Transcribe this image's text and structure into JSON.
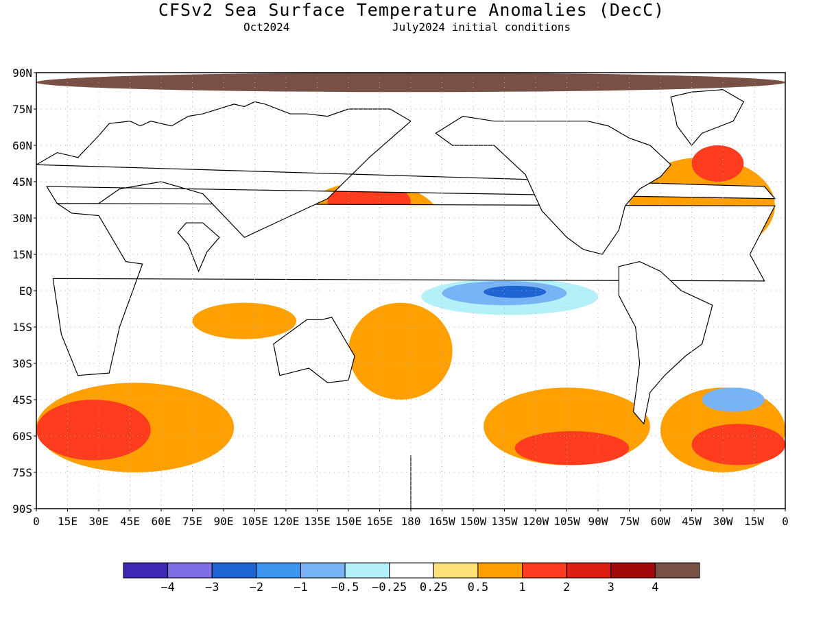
{
  "title": "CFSv2 Sea Surface Temperature Anomalies (DecC)",
  "subtitle_left": "Oct2024",
  "subtitle_right": "July2024 initial conditions",
  "map": {
    "projection": "equirectangular",
    "lon_range": [
      0,
      360
    ],
    "lat_range": [
      -90,
      90
    ],
    "grid": true,
    "lat_ticks": [
      "90N",
      "75N",
      "60N",
      "45N",
      "30N",
      "15N",
      "EQ",
      "15S",
      "30S",
      "45S",
      "60S",
      "75S",
      "90S"
    ],
    "lon_ticks": [
      "0",
      "15E",
      "30E",
      "45E",
      "60E",
      "75E",
      "90E",
      "105E",
      "120E",
      "135E",
      "150E",
      "165E",
      "180",
      "165W",
      "150W",
      "135W",
      "120W",
      "105W",
      "90W",
      "75W",
      "60W",
      "45W",
      "30W",
      "15W",
      "0"
    ]
  },
  "colorbar": {
    "colors": [
      "#3c28b4",
      "#7d6ee6",
      "#1e64d2",
      "#3c96f0",
      "#78b4f5",
      "#b4f0fa",
      "#ffffff",
      "#ffe178",
      "#ffa000",
      "#ff3c1e",
      "#dc1e14",
      "#a00a0a",
      "#785046"
    ],
    "labels": [
      "-4",
      "-3",
      "-2",
      "-1",
      "-0.5",
      "-0.25",
      "0.25",
      "0.5",
      "1",
      "2",
      "3",
      "4"
    ]
  },
  "colors": {
    "land_ice": "#785046",
    "coastline": "#000000",
    "grid": "#aaaaaa"
  },
  "regions": [
    {
      "name": "n-atl-warm",
      "color": "#ffa000",
      "lat": [
        15,
        55
      ],
      "lon": [
        285,
        355
      ]
    },
    {
      "name": "n-atl-hot",
      "color": "#ff3c1e",
      "lat": [
        45,
        60
      ],
      "lon": [
        315,
        340
      ]
    },
    {
      "name": "nw-pac-warm",
      "color": "#ffa000",
      "lat": [
        10,
        45
      ],
      "lon": [
        125,
        195
      ]
    },
    {
      "name": "nw-pac-hot",
      "color": "#ff3c1e",
      "lat": [
        28,
        45
      ],
      "lon": [
        140,
        180
      ]
    },
    {
      "name": "trop-indian-warm",
      "color": "#ffa000",
      "lat": [
        -20,
        -5
      ],
      "lon": [
        75,
        125
      ]
    },
    {
      "name": "sw-pac-warm",
      "color": "#ffa000",
      "lat": [
        -45,
        -5
      ],
      "lon": [
        150,
        200
      ]
    },
    {
      "name": "eq-pac-cool",
      "color": "#b4f0fa",
      "lat": [
        -10,
        5
      ],
      "lon": [
        185,
        270
      ]
    },
    {
      "name": "eq-pac-cooler",
      "color": "#78b4f5",
      "lat": [
        -6,
        4
      ],
      "lon": [
        195,
        255
      ]
    },
    {
      "name": "eq-pac-coolest",
      "color": "#1e64d2",
      "lat": [
        -3,
        2
      ],
      "lon": [
        215,
        245
      ]
    },
    {
      "name": "so-indian-warm",
      "color": "#ffa000",
      "lat": [
        -75,
        -38
      ],
      "lon": [
        0,
        95
      ]
    },
    {
      "name": "so-indian-hot",
      "color": "#ff3c1e",
      "lat": [
        -70,
        -45
      ],
      "lon": [
        0,
        55
      ]
    },
    {
      "name": "so-pac-warm",
      "color": "#ffa000",
      "lat": [
        -72,
        -40
      ],
      "lon": [
        215,
        295
      ]
    },
    {
      "name": "so-pac-hot",
      "color": "#ff3c1e",
      "lat": [
        -72,
        -58
      ],
      "lon": [
        230,
        285
      ]
    },
    {
      "name": "so-atl-warm",
      "color": "#ffa000",
      "lat": [
        -75,
        -40
      ],
      "lon": [
        300,
        360
      ]
    },
    {
      "name": "so-atl-hot",
      "color": "#ff3c1e",
      "lat": [
        -72,
        -55
      ],
      "lon": [
        315,
        360
      ]
    },
    {
      "name": "so-atl-cool",
      "color": "#78b4f5",
      "lat": [
        -50,
        -40
      ],
      "lon": [
        320,
        350
      ]
    },
    {
      "name": "arctic-ice",
      "color": "#785046",
      "lat": [
        82,
        90
      ],
      "lon": [
        0,
        360
      ]
    }
  ],
  "land": [
    {
      "name": "africa",
      "lon": [
        10,
        17,
        30,
        43,
        51,
        40,
        35,
        20,
        12,
        8,
        -10,
        -17,
        -5,
        10
      ],
      "lat": [
        36,
        32,
        31,
        12,
        11,
        -15,
        -34,
        -35,
        -18,
        5,
        4,
        15,
        35,
        36
      ]
    },
    {
      "name": "europe-asia",
      "lon": [
        10,
        30,
        40,
        60,
        80,
        100,
        120,
        140,
        160,
        180,
        170,
        150,
        140,
        130,
        122,
        110,
        105,
        100,
        95,
        80,
        73,
        65,
        55,
        50,
        45,
        35,
        30,
        20,
        10,
        0,
        -10,
        -5,
        5,
        10
      ],
      "lat": [
        36,
        36,
        42,
        45,
        40,
        22,
        30,
        38,
        55,
        70,
        75,
        75,
        72,
        73,
        73,
        77,
        78,
        76,
        77,
        73,
        72,
        68,
        70,
        68,
        70,
        69,
        64,
        55,
        57,
        52,
        43,
        38,
        43,
        36
      ]
    },
    {
      "name": "india",
      "lon": [
        68,
        73,
        78,
        82,
        88,
        80,
        72,
        68
      ],
      "lat": [
        24,
        19,
        8,
        16,
        22,
        28,
        28,
        24
      ]
    },
    {
      "name": "australia",
      "lon": [
        114,
        130,
        137,
        142,
        153,
        150,
        140,
        131,
        117,
        114
      ],
      "lat": [
        -22,
        -12,
        -12,
        -11,
        -27,
        -37,
        -38,
        -32,
        -35,
        -22
      ]
    },
    {
      "name": "north-america",
      "lon": [
        -168,
        -160,
        -140,
        -125,
        -117,
        -105,
        -97,
        -88,
        -80,
        -77,
        -70,
        -60,
        -55,
        -65,
        -75,
        -85,
        -95,
        -105,
        -125,
        -140,
        -155,
        -168
      ],
      "lat": [
        65,
        60,
        60,
        48,
        33,
        22,
        17,
        15,
        25,
        35,
        42,
        47,
        52,
        60,
        63,
        68,
        70,
        70,
        70,
        70,
        72,
        65
      ]
    },
    {
      "name": "south-america",
      "lon": [
        -80,
        -70,
        -60,
        -50,
        -35,
        -40,
        -48,
        -58,
        -65,
        -68,
        -73,
        -70,
        -72,
        -80
      ],
      "lat": [
        10,
        12,
        8,
        0,
        -6,
        -22,
        -27,
        -35,
        -42,
        -55,
        -50,
        -30,
        -15,
        -2
      ]
    },
    {
      "name": "greenland",
      "lon": [
        -55,
        -45,
        -30,
        -20,
        -25,
        -40,
        -45,
        -52,
        -55
      ],
      "lat": [
        80,
        82,
        83,
        78,
        70,
        65,
        60,
        68,
        80
      ]
    },
    {
      "name": "antarctica",
      "lon": [
        -180,
        180,
        180,
        -180
      ],
      "lat": [
        -68,
        -68,
        -90,
        -90
      ]
    }
  ]
}
